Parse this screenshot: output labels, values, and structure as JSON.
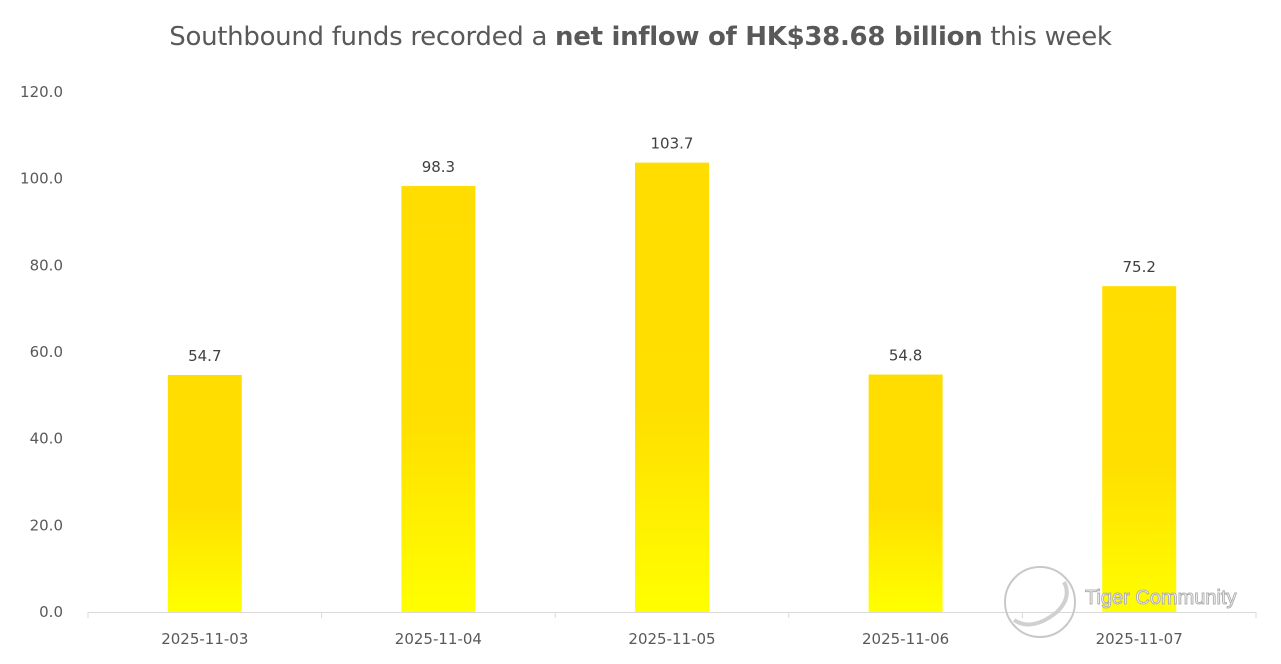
{
  "chart_data": {
    "type": "bar",
    "title_parts": {
      "prefix": "Southbound funds recorded a ",
      "bold": "net inflow of HK$38.68 billion",
      "suffix": " this week"
    },
    "categories": [
      "2025-11-03",
      "2025-11-04",
      "2025-11-05",
      "2025-11-06",
      "2025-11-07"
    ],
    "values": [
      54.7,
      98.3,
      103.7,
      54.8,
      75.2
    ],
    "data_labels": [
      "54.7",
      "98.3",
      "103.7",
      "54.8",
      "75.2"
    ],
    "yticks": [
      "0.0",
      "20.0",
      "40.0",
      "60.0",
      "80.0",
      "100.0",
      "120.0"
    ],
    "ylim": [
      0,
      120
    ],
    "xlabel": "",
    "ylabel": "",
    "grid": false,
    "colors": {
      "bar_top": "#FFDD00",
      "bar_bottom": "#FFFF00",
      "axis": "#D9D9D9"
    }
  },
  "watermark": "Tiger Community"
}
